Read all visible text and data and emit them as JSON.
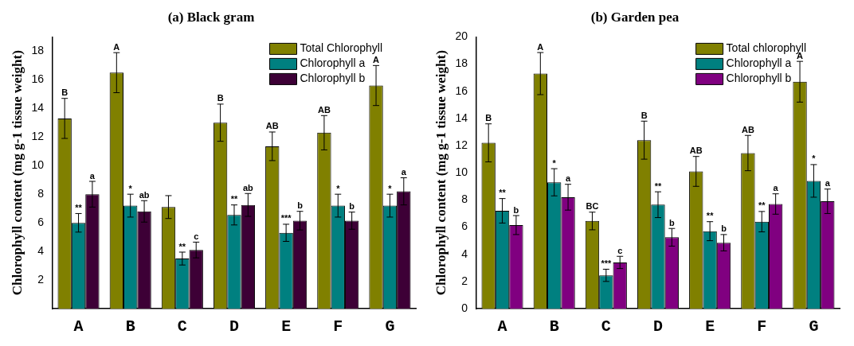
{
  "chart_data": [
    {
      "type": "bar",
      "title": "(a) Black gram",
      "ylabel": "Chlorophyll content (mg g-1 tissue weight)",
      "categories": [
        "A",
        "B",
        "C",
        "D",
        "E",
        "F",
        "G"
      ],
      "ylim": [
        0,
        19
      ],
      "yticks": [
        2,
        4,
        6,
        8,
        10,
        12,
        14,
        16,
        18
      ],
      "grid": false,
      "legend": "top right",
      "series": [
        {
          "name": "Total Chlorophyll",
          "color": "#808000",
          "values": [
            13.3,
            16.5,
            7.1,
            13.0,
            11.35,
            12.3,
            15.6
          ],
          "errors": [
            1.4,
            1.4,
            0.8,
            1.3,
            1.0,
            1.2,
            1.4
          ],
          "value_labels": [
            "B",
            "A",
            null,
            "B",
            "AB",
            "AB",
            "A"
          ]
        },
        {
          "name": "Chlorophyll a",
          "color": "#008080",
          "values": [
            6.0,
            7.2,
            3.5,
            6.55,
            5.3,
            7.2,
            7.2
          ],
          "errors": [
            0.65,
            0.8,
            0.45,
            0.7,
            0.6,
            0.8,
            0.8
          ],
          "value_labels": [
            "**",
            "*",
            "**",
            "**",
            "***",
            "*",
            "*"
          ]
        },
        {
          "name": "Chlorophyll b",
          "color": "#3d0036",
          "values": [
            8.0,
            6.8,
            4.1,
            7.25,
            6.15,
            6.15,
            8.2
          ],
          "errors": [
            0.9,
            0.75,
            0.55,
            0.8,
            0.65,
            0.6,
            0.95
          ],
          "value_labels": [
            "a",
            "ab",
            "c",
            "ab",
            "b",
            "b",
            "a"
          ]
        }
      ]
    },
    {
      "type": "bar",
      "title": "(b) Garden pea",
      "ylabel": "Chlorophyll content (mg g-1 tissue weight)",
      "categories": [
        "A",
        "B",
        "C",
        "D",
        "E",
        "F",
        "G"
      ],
      "ylim": [
        0,
        20
      ],
      "yticks": [
        0,
        2,
        4,
        6,
        8,
        10,
        12,
        14,
        16,
        18,
        20
      ],
      "grid": false,
      "legend": "top right",
      "series": [
        {
          "name": "Total chlorophyll",
          "color": "#808000",
          "values": [
            12.2,
            17.3,
            6.45,
            12.4,
            10.1,
            11.45,
            16.7
          ],
          "errors": [
            1.4,
            1.55,
            0.65,
            1.4,
            1.1,
            1.3,
            1.5
          ],
          "value_labels": [
            "B",
            "A",
            "BC",
            "B",
            "AB",
            "AB",
            "A"
          ]
        },
        {
          "name": "Chlorophyll a",
          "color": "#008080",
          "values": [
            7.2,
            9.3,
            2.45,
            7.65,
            5.7,
            6.4,
            9.4
          ],
          "errors": [
            0.9,
            1.0,
            0.45,
            0.95,
            0.7,
            0.75,
            1.2
          ],
          "value_labels": [
            "**",
            "*",
            "***",
            "**",
            "**",
            "**",
            "*"
          ]
        },
        {
          "name": "Chlorophyll b",
          "color": "#800080",
          "values": [
            6.15,
            8.2,
            3.4,
            5.25,
            4.85,
            7.7,
            7.9
          ],
          "errors": [
            0.7,
            0.95,
            0.45,
            0.65,
            0.6,
            0.75,
            0.9
          ],
          "value_labels": [
            "b",
            "a",
            "c",
            "b",
            "b",
            "a",
            "a"
          ]
        }
      ]
    }
  ]
}
